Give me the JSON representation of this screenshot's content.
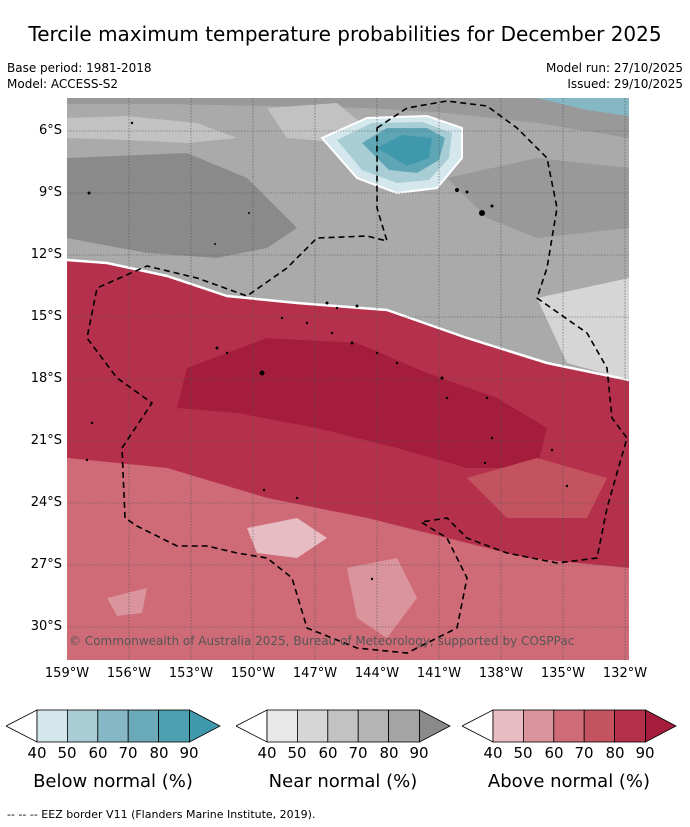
{
  "title": "Tercile maximum temperature probabilities for December 2025",
  "meta": {
    "base_period": "Base period: 1981-2018",
    "model": "Model: ACCESS-S2",
    "model_run": "Model run: 27/10/2025",
    "issued": "Issued: 29/10/2025"
  },
  "map": {
    "lat_labels": [
      "6°S",
      "9°S",
      "12°S",
      "15°S",
      "18°S",
      "21°S",
      "24°S",
      "27°S",
      "30°S"
    ],
    "lon_labels": [
      "159°W",
      "156°W",
      "153°W",
      "150°W",
      "147°W",
      "144°W",
      "141°W",
      "138°W",
      "135°W",
      "132°W"
    ],
    "copyright": "© Commonwealth of Australia 2025, Bureau of Meteorology, supported by COSPPac",
    "colors": {
      "above": [
        "#e7bcc2",
        "#d9949c",
        "#cf6b77",
        "#c45360",
        "#b5304a",
        "#a41d3c"
      ],
      "near": [
        "#e8e8e8",
        "#d6d6d6",
        "#c2c2c2",
        "#aaaaaa",
        "#999999",
        "#8a8a8a"
      ],
      "below": [
        "#d3e7ec",
        "#a9cdd5",
        "#85b8c4",
        "#5ea6b5",
        "#3f98ab"
      ]
    }
  },
  "legend": {
    "ticks": [
      "40",
      "50",
      "60",
      "70",
      "80",
      "90"
    ],
    "below_title": "Below normal (%)",
    "near_title": "Near normal (%)",
    "above_title": "Above normal (%)"
  },
  "footer": "--  --  -- EEZ border V11 (Flanders Marine Institute, 2019)."
}
